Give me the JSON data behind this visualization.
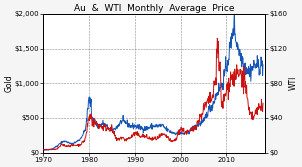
{
  "title": "Au  &  WTI  Monthly  Average  Price",
  "ylabel_left": "Gold",
  "ylabel_right": "WTI",
  "gold_color": "#1455b5",
  "wti_color": "#cc1111",
  "background_color": "#f5f5f5",
  "plot_bg_color": "#ffffff",
  "gold_ylim": [
    0,
    2000
  ],
  "wti_ylim": [
    0,
    160
  ],
  "gold_yticks": [
    0,
    500,
    1000,
    1500,
    2000
  ],
  "wti_yticks": [
    0,
    40,
    80,
    120,
    160
  ],
  "gold_yticklabels": [
    "$0",
    "$500",
    "$1,000",
    "$1,500",
    "$2,000"
  ],
  "wti_yticklabels": [
    "$0",
    "$40",
    "$80",
    "$120",
    "$160"
  ],
  "xlim": [
    1970,
    2018.5
  ],
  "xticks": [
    1970,
    1980,
    1990,
    2000,
    2010
  ],
  "grid_color": "#888888",
  "linewidth": 0.7,
  "title_fontsize": 6.5,
  "tick_fontsize": 5.0,
  "label_fontsize": 5.5
}
